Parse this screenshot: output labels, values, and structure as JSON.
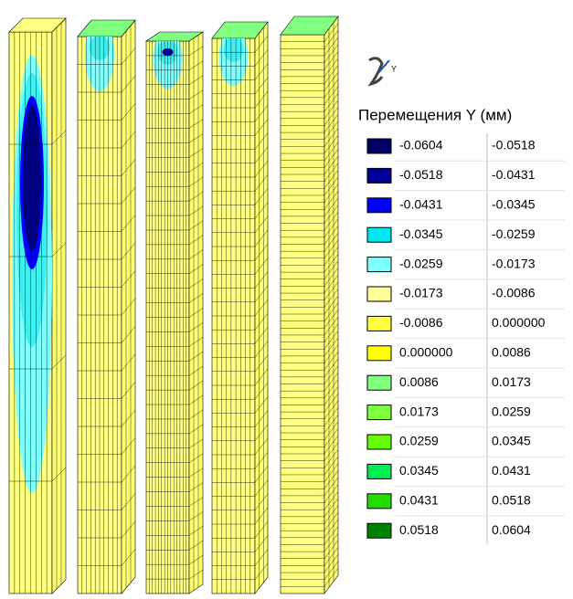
{
  "legend": {
    "title": "Перемещения Y (мм)",
    "rows": [
      {
        "from": "-0.0604",
        "to": "-0.0518",
        "color": "#000066"
      },
      {
        "from": "-0.0518",
        "to": "-0.0431",
        "color": "#000099"
      },
      {
        "from": "-0.0431",
        "to": "-0.0345",
        "color": "#0000ff"
      },
      {
        "from": "-0.0345",
        "to": "-0.0259",
        "color": "#00e8f0"
      },
      {
        "from": "-0.0259",
        "to": "-0.0173",
        "color": "#80ffff"
      },
      {
        "from": "-0.0173",
        "to": "-0.0086",
        "color": "#ffff99"
      },
      {
        "from": "-0.0086",
        "to": "0.000000",
        "color": "#ffff40"
      },
      {
        "from": "0.000000",
        "to": "0.0086",
        "color": "#ffff00"
      },
      {
        "from": "0.0086",
        "to": "0.0173",
        "color": "#80ff80"
      },
      {
        "from": "0.0173",
        "to": "0.0259",
        "color": "#80ff40"
      },
      {
        "from": "0.0259",
        "to": "0.0345",
        "color": "#66ff00"
      },
      {
        "from": "0.0345",
        "to": "0.0431",
        "color": "#00ee55"
      },
      {
        "from": "0.0431",
        "to": "0.0518",
        "color": "#22dd00"
      },
      {
        "from": "0.0518",
        "to": "0.0604",
        "color": "#008000"
      }
    ]
  }
}
